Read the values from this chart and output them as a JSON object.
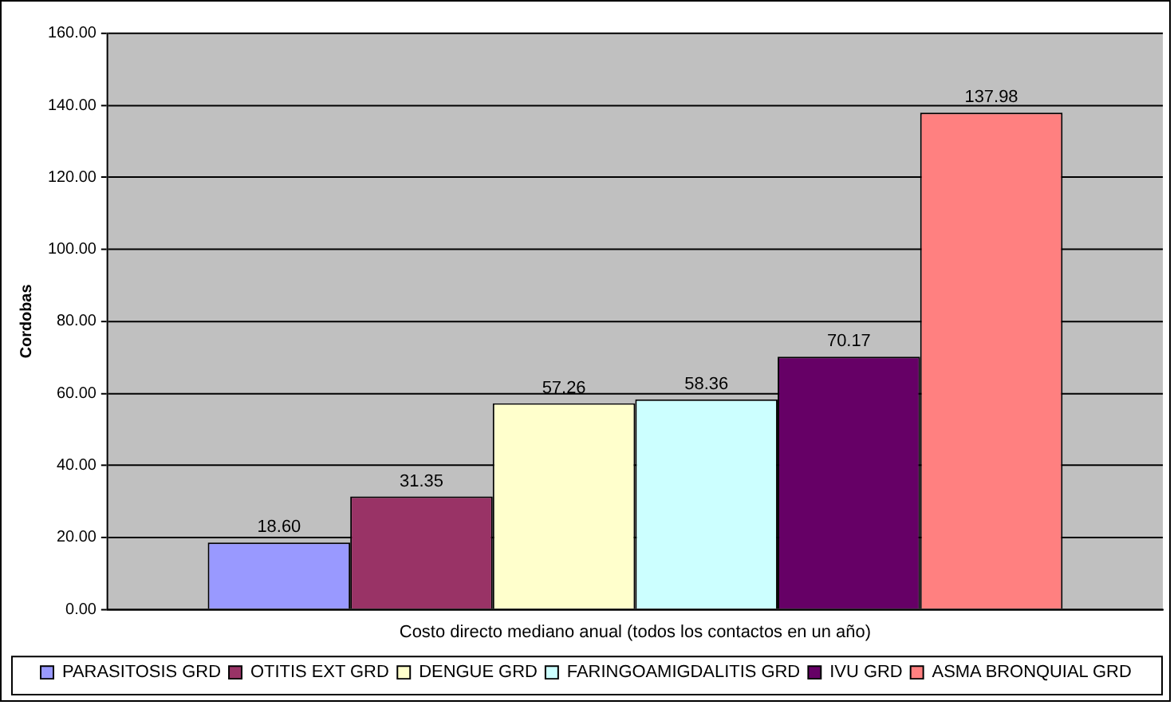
{
  "chart_data": {
    "type": "bar",
    "ylabel": "Cordobas",
    "categories": [
      "Costo directo mediano anual (todos los contactos en un año)"
    ],
    "series": [
      {
        "name": "PARASITOSIS GRD",
        "color": "#9999ff",
        "values": [
          18.6
        ],
        "value_labels": [
          "18.60"
        ]
      },
      {
        "name": "OTITIS EXT GRD",
        "color": "#993366",
        "values": [
          31.35
        ],
        "value_labels": [
          "31.35"
        ]
      },
      {
        "name": "DENGUE GRD",
        "color": "#ffffcc",
        "values": [
          57.26
        ],
        "value_labels": [
          "57.26"
        ]
      },
      {
        "name": "FARINGOAMIGDALITIS GRD",
        "color": "#ccffff",
        "values": [
          58.36
        ],
        "value_labels": [
          "58.36"
        ]
      },
      {
        "name": "IVU GRD",
        "color": "#660066",
        "values": [
          70.17
        ],
        "value_labels": [
          "70.17"
        ]
      },
      {
        "name": "ASMA BRONQUIAL GRD",
        "color": "#ff8080",
        "values": [
          137.98
        ],
        "value_labels": [
          "137.98"
        ]
      }
    ],
    "ylim": [
      0,
      160
    ],
    "yticks": [
      {
        "value": 0,
        "label": "0.00"
      },
      {
        "value": 20,
        "label": "20.00"
      },
      {
        "value": 40,
        "label": "40.00"
      },
      {
        "value": 60,
        "label": "60.00"
      },
      {
        "value": 80,
        "label": "80.00"
      },
      {
        "value": 100,
        "label": "100.00"
      },
      {
        "value": 120,
        "label": "120.00"
      },
      {
        "value": 140,
        "label": "140.00"
      },
      {
        "value": 160,
        "label": "160.00"
      }
    ],
    "grid": "y",
    "legend": "bottom"
  }
}
